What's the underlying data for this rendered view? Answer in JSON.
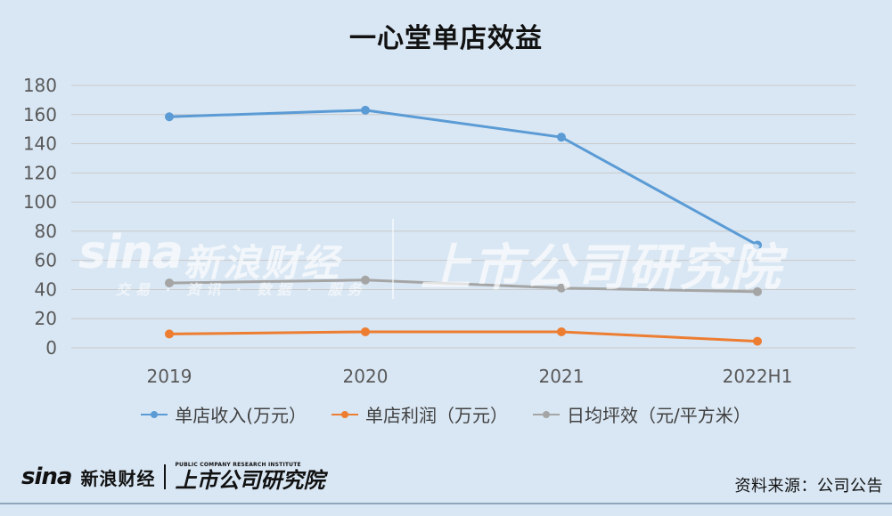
{
  "chart_data": {
    "type": "line",
    "title": "一心堂单店效益",
    "categories": [
      "2019",
      "2020",
      "2021",
      "2022H1"
    ],
    "ylim": [
      0,
      180
    ],
    "yticks": [
      0,
      20,
      40,
      60,
      80,
      100,
      120,
      140,
      160,
      180
    ],
    "grid": true,
    "legend_position": "bottom",
    "series": [
      {
        "name": "单店收入(万元）",
        "values": [
          158.5,
          163,
          144.5,
          70.5
        ],
        "color": "#5b9bd5"
      },
      {
        "name": "单店利润（万元）",
        "values": [
          9.5,
          11,
          11,
          4.5
        ],
        "color": "#ed7d31"
      },
      {
        "name": "日均坪效（元/平方米）",
        "values": [
          44.5,
          46.5,
          41,
          38.5
        ],
        "color": "#a5a5a5"
      }
    ]
  },
  "watermark": {
    "brand": "sina",
    "name": "新浪财经",
    "subtitle": "交易 · 资讯 · 数据 · 服务",
    "right": "上市公司研究院"
  },
  "footer": {
    "brand": "sina",
    "name": "新浪财经",
    "right_small": "PUBLIC COMPANY RESEARCH INSTITUTE",
    "right": "上市公司研究院",
    "source": "资料来源：公司公告"
  }
}
